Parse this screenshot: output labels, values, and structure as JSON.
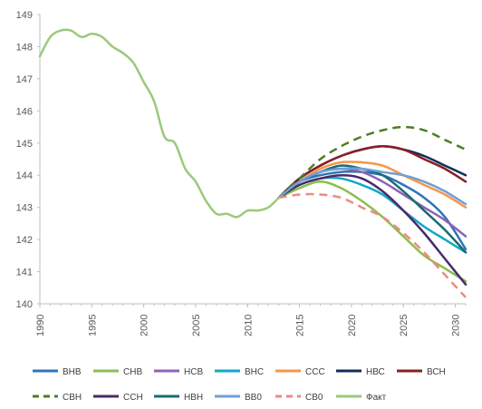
{
  "chart_data": {
    "type": "line",
    "title": "",
    "xlabel": "",
    "ylabel": "",
    "xlim": [
      1990,
      2031
    ],
    "ylim": [
      140,
      149
    ],
    "y_ticks": [
      "140",
      "141",
      "142",
      "143",
      "144",
      "145",
      "146",
      "147",
      "148",
      "149"
    ],
    "x_ticks": [
      "1990",
      "1995",
      "2000",
      "2005",
      "2010",
      "2015",
      "2020",
      "2025",
      "2030"
    ],
    "grid": false,
    "legend_position": "bottom",
    "series": [
      {
        "name": "ВНВ",
        "color": "#2e75b6",
        "dash": false,
        "x": [
          2013,
          2015,
          2017,
          2019,
          2021,
          2023,
          2025,
          2027,
          2029,
          2031
        ],
        "values": [
          143.3,
          143.8,
          144.0,
          144.1,
          144.1,
          144.0,
          143.7,
          143.3,
          142.7,
          141.7
        ]
      },
      {
        "name": "СНВ",
        "color": "#8fbc4f",
        "dash": false,
        "x": [
          2013,
          2015,
          2017,
          2019,
          2021,
          2023,
          2025,
          2027,
          2029,
          2031
        ],
        "values": [
          143.3,
          143.6,
          143.8,
          143.6,
          143.2,
          142.7,
          142.1,
          141.5,
          141.1,
          140.7
        ]
      },
      {
        "name": "НСВ",
        "color": "#8e63b6",
        "dash": false,
        "x": [
          2013,
          2015,
          2017,
          2019,
          2021,
          2023,
          2025,
          2027,
          2029,
          2031
        ],
        "values": [
          143.3,
          143.8,
          144.1,
          144.2,
          144.1,
          143.8,
          143.4,
          143.0,
          142.6,
          142.1
        ]
      },
      {
        "name": "ВНС",
        "color": "#13a7c7",
        "dash": false,
        "x": [
          2013,
          2015,
          2017,
          2019,
          2021,
          2023,
          2025,
          2027,
          2029,
          2031
        ],
        "values": [
          143.3,
          143.7,
          143.9,
          143.9,
          143.7,
          143.4,
          142.9,
          142.4,
          142.0,
          141.6
        ]
      },
      {
        "name": "ССС",
        "color": "#f79646",
        "dash": false,
        "x": [
          2013,
          2015,
          2017,
          2019,
          2021,
          2023,
          2025,
          2027,
          2029,
          2031
        ],
        "values": [
          143.3,
          143.8,
          144.2,
          144.4,
          144.4,
          144.3,
          144.0,
          143.7,
          143.4,
          143.0
        ]
      },
      {
        "name": "НВС",
        "color": "#0e2e58",
        "dash": false,
        "x": [
          2013,
          2015,
          2017,
          2019,
          2021,
          2023,
          2025,
          2027,
          2029,
          2031
        ],
        "values": [
          143.3,
          143.9,
          144.3,
          144.6,
          144.8,
          144.9,
          144.8,
          144.6,
          144.3,
          144.0
        ]
      },
      {
        "name": "ВСН",
        "color": "#8b1e24",
        "dash": false,
        "x": [
          2013,
          2015,
          2017,
          2019,
          2021,
          2023,
          2025,
          2027,
          2029,
          2031
        ],
        "values": [
          143.3,
          143.9,
          144.3,
          144.6,
          144.8,
          144.9,
          144.8,
          144.5,
          144.2,
          143.8
        ]
      },
      {
        "name": "СВН",
        "color": "#4f7d24",
        "dash": true,
        "x": [
          2013,
          2015,
          2017,
          2019,
          2021,
          2023,
          2025,
          2027,
          2029,
          2031
        ],
        "values": [
          143.3,
          143.9,
          144.5,
          144.9,
          145.2,
          145.4,
          145.5,
          145.4,
          145.1,
          144.8
        ]
      },
      {
        "name": "ССН",
        "color": "#4b2a6b",
        "dash": false,
        "x": [
          2013,
          2015,
          2017,
          2019,
          2021,
          2023,
          2025,
          2027,
          2029,
          2031
        ],
        "values": [
          143.3,
          143.7,
          143.9,
          144.0,
          143.9,
          143.5,
          142.9,
          142.2,
          141.4,
          140.6
        ]
      },
      {
        "name": "НВН",
        "color": "#1a6b73",
        "dash": false,
        "x": [
          2013,
          2015,
          2017,
          2019,
          2021,
          2023,
          2025,
          2027,
          2029,
          2031
        ],
        "values": [
          143.3,
          143.8,
          144.1,
          144.3,
          144.2,
          144.0,
          143.5,
          142.9,
          142.3,
          141.6
        ]
      },
      {
        "name": "ВВ0",
        "color": "#6fa0d6",
        "dash": false,
        "x": [
          2013,
          2015,
          2017,
          2019,
          2021,
          2023,
          2025,
          2027,
          2029,
          2031
        ],
        "values": [
          143.3,
          143.8,
          144.1,
          144.2,
          144.2,
          144.1,
          144.0,
          143.8,
          143.5,
          143.1
        ]
      },
      {
        "name": "СВ0",
        "color": "#ee8a80",
        "dash": true,
        "x": [
          2013,
          2015,
          2017,
          2019,
          2021,
          2023,
          2025,
          2027,
          2029,
          2031
        ],
        "values": [
          143.3,
          143.4,
          143.4,
          143.3,
          143.0,
          142.7,
          142.2,
          141.6,
          140.9,
          140.2
        ]
      },
      {
        "name": "Факт",
        "color": "#9bc97a",
        "dash": false,
        "x": [
          1990,
          1991,
          1992,
          1993,
          1994,
          1995,
          1996,
          1997,
          1998,
          1999,
          2000,
          2001,
          2002,
          2003,
          2004,
          2005,
          2006,
          2007,
          2008,
          2009,
          2010,
          2011,
          2012,
          2013
        ],
        "values": [
          147.7,
          148.3,
          148.5,
          148.5,
          148.3,
          148.4,
          148.3,
          148.0,
          147.8,
          147.5,
          146.9,
          146.3,
          145.2,
          145.0,
          144.2,
          143.8,
          143.2,
          142.8,
          142.8,
          142.7,
          142.9,
          142.9,
          143.0,
          143.3
        ]
      }
    ]
  }
}
